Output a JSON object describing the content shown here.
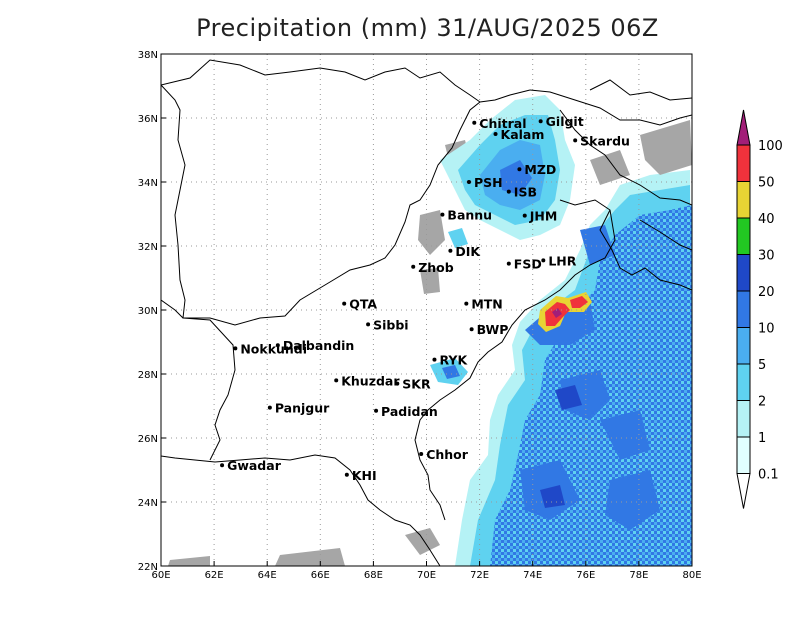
{
  "title": "Precipitation (mm) 31/AUG/2025 06Z",
  "map": {
    "lon_range": [
      60,
      80
    ],
    "lat_range": [
      22,
      38
    ],
    "x_ticks": [
      "60E",
      "62E",
      "64E",
      "66E",
      "68E",
      "70E",
      "72E",
      "74E",
      "76E",
      "78E",
      "80E"
    ],
    "y_ticks": [
      "22N",
      "24N",
      "26N",
      "28N",
      "30N",
      "32N",
      "34N",
      "36N",
      "38N"
    ],
    "grid": true
  },
  "cities": [
    {
      "name": "Chitral",
      "lon": 71.8,
      "lat": 35.85
    },
    {
      "name": "Gilgit",
      "lon": 74.3,
      "lat": 35.9
    },
    {
      "name": "Kalam",
      "lon": 72.6,
      "lat": 35.5
    },
    {
      "name": "Skardu",
      "lon": 75.6,
      "lat": 35.3
    },
    {
      "name": "MZD",
      "lon": 73.5,
      "lat": 34.4
    },
    {
      "name": "PSH",
      "lon": 71.6,
      "lat": 34.0
    },
    {
      "name": "ISB",
      "lon": 73.1,
      "lat": 33.7
    },
    {
      "name": "JHM",
      "lon": 73.7,
      "lat": 32.95
    },
    {
      "name": "Bannu",
      "lon": 70.6,
      "lat": 32.98
    },
    {
      "name": "DIK",
      "lon": 70.9,
      "lat": 31.85
    },
    {
      "name": "FSD",
      "lon": 73.1,
      "lat": 31.45
    },
    {
      "name": "LHR",
      "lon": 74.4,
      "lat": 31.55
    },
    {
      "name": "Zhob",
      "lon": 69.5,
      "lat": 31.35
    },
    {
      "name": "QTA",
      "lon": 66.9,
      "lat": 30.2
    },
    {
      "name": "MTN",
      "lon": 71.5,
      "lat": 30.2
    },
    {
      "name": "Sibbi",
      "lon": 67.8,
      "lat": 29.55
    },
    {
      "name": "BWP",
      "lon": 71.7,
      "lat": 29.4
    },
    {
      "name": "Dalbandin",
      "lon": 64.4,
      "lat": 28.9
    },
    {
      "name": "Nokkundi",
      "lon": 62.8,
      "lat": 28.8
    },
    {
      "name": "RYK",
      "lon": 70.3,
      "lat": 28.45
    },
    {
      "name": "Khuzdar",
      "lon": 66.6,
      "lat": 27.8
    },
    {
      "name": "SKR",
      "lon": 68.9,
      "lat": 27.7
    },
    {
      "name": "Panjgur",
      "lon": 64.1,
      "lat": 26.95
    },
    {
      "name": "Padidan",
      "lon": 68.1,
      "lat": 26.85
    },
    {
      "name": "Chhor",
      "lon": 69.8,
      "lat": 25.5
    },
    {
      "name": "KHI",
      "lon": 67.0,
      "lat": 24.85
    },
    {
      "name": "Gwadar",
      "lon": 62.3,
      "lat": 25.15
    }
  ],
  "colorbar": {
    "labels": [
      "0.1",
      "1",
      "2",
      "5",
      "10",
      "20",
      "30",
      "40",
      "50",
      "100"
    ],
    "colors": [
      "#a6a6a6",
      "#e1ffff",
      "#b5f2f5",
      "#5fd2f0",
      "#4aaef0",
      "#3178e4",
      "#1f48c8",
      "#22c822",
      "#e8d434",
      "#f0323c",
      "#a21e78"
    ]
  }
}
